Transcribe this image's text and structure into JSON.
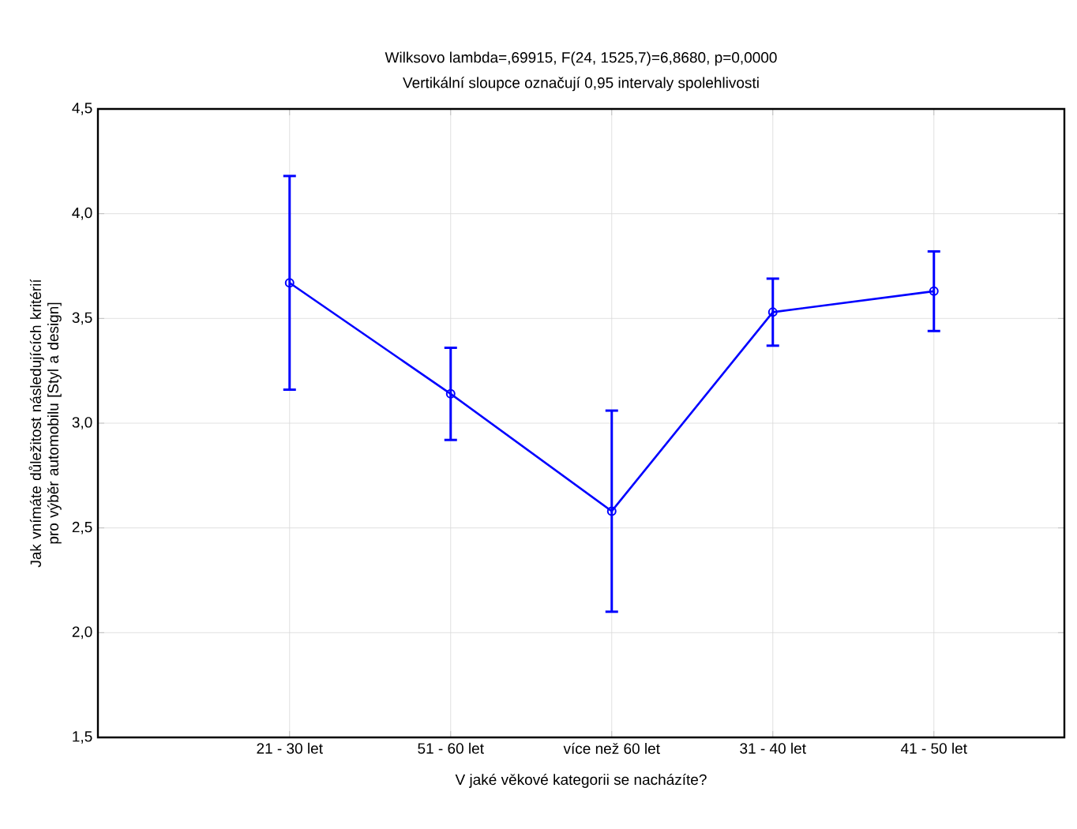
{
  "chart_data": {
    "type": "line",
    "title": "Wilksovo lambda=,69915, F(24, 1525,7)=6,8680, p=0,0000",
    "subtitle": "Vertikální sloupce označují 0,95 intervaly spolehlivosti",
    "xlabel": "V jaké věkové kategorii se nacházíte?",
    "ylabel": "Jak vnímáte důležitost následujících kritérií pro výběr automobilu [Styl a design]",
    "categories": [
      "21 - 30 let",
      "51 - 60 let",
      "více než 60 let",
      "31 - 40 let",
      "41 - 50 let"
    ],
    "series": [
      {
        "color": "#0000ff",
        "values": [
          3.67,
          3.14,
          2.58,
          3.53,
          3.63
        ],
        "errors": [
          0.51,
          0.22,
          0.48,
          0.16,
          0.19
        ]
      }
    ],
    "ylim": [
      1.5,
      4.5
    ],
    "yticks": [
      {
        "value": 1.5,
        "label": "1,5"
      },
      {
        "value": 2.0,
        "label": "2,0"
      },
      {
        "value": 2.5,
        "label": "2,5"
      },
      {
        "value": 3.0,
        "label": "3,0"
      },
      {
        "value": 3.5,
        "label": "3,5"
      },
      {
        "value": 4.0,
        "label": "4,0"
      },
      {
        "value": 4.5,
        "label": "4,5"
      }
    ],
    "grid": true,
    "marker": "circle",
    "line_style": "solid"
  }
}
